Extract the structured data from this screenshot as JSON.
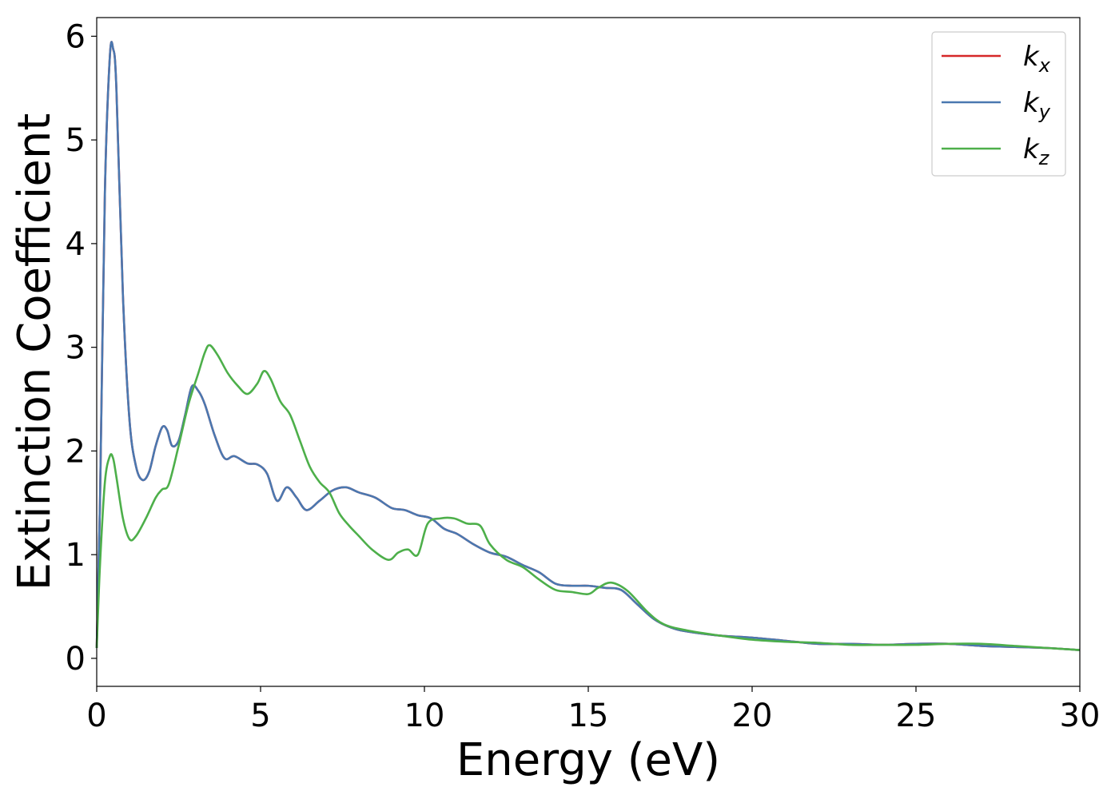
{
  "chart_data": {
    "type": "line",
    "xlabel": "Energy (eV)",
    "ylabel": "Extinction Coefficient",
    "xlim": [
      0,
      30
    ],
    "ylim": [
      -0.27,
      6.18
    ],
    "xticks": [
      "0",
      "5",
      "10",
      "15",
      "20",
      "25",
      "30"
    ],
    "yticks": [
      "0",
      "1",
      "2",
      "3",
      "4",
      "5",
      "6"
    ],
    "grid": false,
    "legend": {
      "placement": "top-right"
    },
    "series": [
      {
        "name": "k",
        "subscript": "x",
        "color": "#d62728",
        "x": [
          0,
          0.1,
          0.25,
          0.4,
          0.5,
          0.6,
          0.8,
          1.0,
          1.2,
          1.4,
          1.6,
          1.8,
          2.0,
          2.15,
          2.3,
          2.5,
          2.7,
          2.9,
          3.1,
          3.3,
          3.6,
          3.9,
          4.2,
          4.6,
          4.9,
          5.2,
          5.5,
          5.8,
          6.1,
          6.4,
          6.8,
          7.2,
          7.6,
          8.0,
          8.5,
          9.0,
          9.4,
          9.8,
          10.2,
          10.6,
          11.0,
          11.5,
          12.0,
          12.5,
          13.0,
          13.5,
          14.0,
          14.5,
          15.0,
          15.5,
          16.0,
          16.5,
          17.0,
          17.5,
          18.0,
          19.0,
          20.0,
          21.0,
          22.0,
          23.0,
          24.0,
          25.0,
          26.0,
          27.0,
          28.0,
          29.0,
          30.0
        ],
        "values": [
          0.1,
          1.5,
          4.5,
          5.8,
          5.88,
          5.5,
          3.5,
          2.3,
          1.85,
          1.72,
          1.8,
          2.05,
          2.23,
          2.2,
          2.05,
          2.1,
          2.35,
          2.62,
          2.58,
          2.45,
          2.15,
          1.93,
          1.95,
          1.88,
          1.87,
          1.78,
          1.52,
          1.65,
          1.55,
          1.43,
          1.52,
          1.62,
          1.65,
          1.6,
          1.55,
          1.45,
          1.43,
          1.38,
          1.35,
          1.25,
          1.2,
          1.1,
          1.02,
          0.98,
          0.9,
          0.83,
          0.72,
          0.7,
          0.7,
          0.68,
          0.66,
          0.52,
          0.38,
          0.3,
          0.26,
          0.22,
          0.2,
          0.17,
          0.14,
          0.14,
          0.13,
          0.14,
          0.14,
          0.12,
          0.11,
          0.1,
          0.08
        ]
      },
      {
        "name": "k",
        "subscript": "y",
        "color": "#4a78b0",
        "x": [
          0,
          0.1,
          0.25,
          0.4,
          0.5,
          0.6,
          0.8,
          1.0,
          1.2,
          1.4,
          1.6,
          1.8,
          2.0,
          2.15,
          2.3,
          2.5,
          2.7,
          2.9,
          3.1,
          3.3,
          3.6,
          3.9,
          4.2,
          4.6,
          4.9,
          5.2,
          5.5,
          5.8,
          6.1,
          6.4,
          6.8,
          7.2,
          7.6,
          8.0,
          8.5,
          9.0,
          9.4,
          9.8,
          10.2,
          10.6,
          11.0,
          11.5,
          12.0,
          12.5,
          13.0,
          13.5,
          14.0,
          14.5,
          15.0,
          15.5,
          16.0,
          16.5,
          17.0,
          17.5,
          18.0,
          19.0,
          20.0,
          21.0,
          22.0,
          23.0,
          24.0,
          25.0,
          26.0,
          27.0,
          28.0,
          29.0,
          30.0
        ],
        "values": [
          0.1,
          1.5,
          4.5,
          5.8,
          5.88,
          5.5,
          3.5,
          2.3,
          1.85,
          1.72,
          1.8,
          2.05,
          2.23,
          2.2,
          2.05,
          2.1,
          2.35,
          2.62,
          2.58,
          2.45,
          2.15,
          1.93,
          1.95,
          1.88,
          1.87,
          1.78,
          1.52,
          1.65,
          1.55,
          1.43,
          1.52,
          1.62,
          1.65,
          1.6,
          1.55,
          1.45,
          1.43,
          1.38,
          1.35,
          1.25,
          1.2,
          1.1,
          1.02,
          0.98,
          0.9,
          0.83,
          0.72,
          0.7,
          0.7,
          0.68,
          0.66,
          0.52,
          0.38,
          0.3,
          0.26,
          0.22,
          0.2,
          0.17,
          0.14,
          0.14,
          0.13,
          0.14,
          0.14,
          0.12,
          0.11,
          0.1,
          0.08
        ]
      },
      {
        "name": "k",
        "subscript": "z",
        "color": "#4daf4a",
        "x": [
          0,
          0.1,
          0.25,
          0.4,
          0.5,
          0.6,
          0.8,
          1.0,
          1.2,
          1.5,
          1.8,
          2.0,
          2.2,
          2.5,
          2.8,
          3.1,
          3.3,
          3.45,
          3.7,
          4.0,
          4.3,
          4.6,
          4.9,
          5.1,
          5.3,
          5.6,
          5.9,
          6.2,
          6.5,
          6.8,
          7.1,
          7.4,
          7.7,
          8.0,
          8.4,
          8.9,
          9.2,
          9.5,
          9.8,
          10.1,
          10.5,
          10.9,
          11.3,
          11.7,
          12.0,
          12.5,
          13.0,
          13.5,
          14.0,
          14.5,
          15.0,
          15.3,
          15.7,
          16.2,
          16.8,
          17.3,
          18.0,
          19.0,
          20.0,
          21.0,
          22.0,
          23.0,
          24.0,
          25.0,
          26.0,
          27.0,
          28.0,
          29.0,
          30.0
        ],
        "values": [
          0.1,
          0.9,
          1.7,
          1.95,
          1.93,
          1.75,
          1.35,
          1.15,
          1.18,
          1.35,
          1.55,
          1.63,
          1.68,
          2.05,
          2.45,
          2.75,
          2.95,
          3.02,
          2.92,
          2.75,
          2.63,
          2.55,
          2.65,
          2.77,
          2.7,
          2.48,
          2.35,
          2.1,
          1.85,
          1.7,
          1.6,
          1.4,
          1.28,
          1.18,
          1.05,
          0.95,
          1.02,
          1.05,
          1.0,
          1.3,
          1.35,
          1.35,
          1.3,
          1.28,
          1.1,
          0.95,
          0.88,
          0.76,
          0.66,
          0.64,
          0.62,
          0.68,
          0.73,
          0.65,
          0.45,
          0.33,
          0.27,
          0.22,
          0.18,
          0.16,
          0.15,
          0.13,
          0.13,
          0.13,
          0.14,
          0.14,
          0.12,
          0.1,
          0.08
        ]
      }
    ]
  }
}
